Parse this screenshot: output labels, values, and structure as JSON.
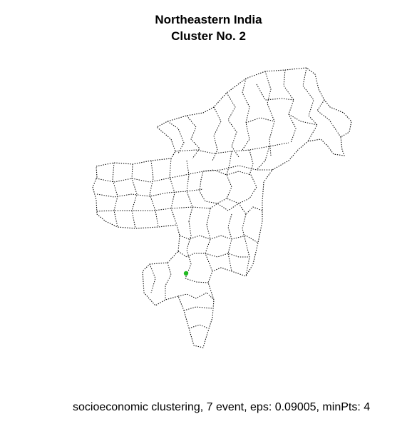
{
  "title": {
    "line1": "Northeastern India",
    "line2": "Cluster No. 2"
  },
  "caption": "socioeconomic clustering, 7 event, eps: 0.09005, minPts: 4",
  "colors": {
    "boundary": "#000000",
    "cluster_point": "#22bb22",
    "background": "#ffffff"
  },
  "map": {
    "region": "Northeastern India",
    "boundary_style": "dotted",
    "highlighted_points": [
      {
        "cluster": 2,
        "color": "#22bb22"
      }
    ]
  }
}
